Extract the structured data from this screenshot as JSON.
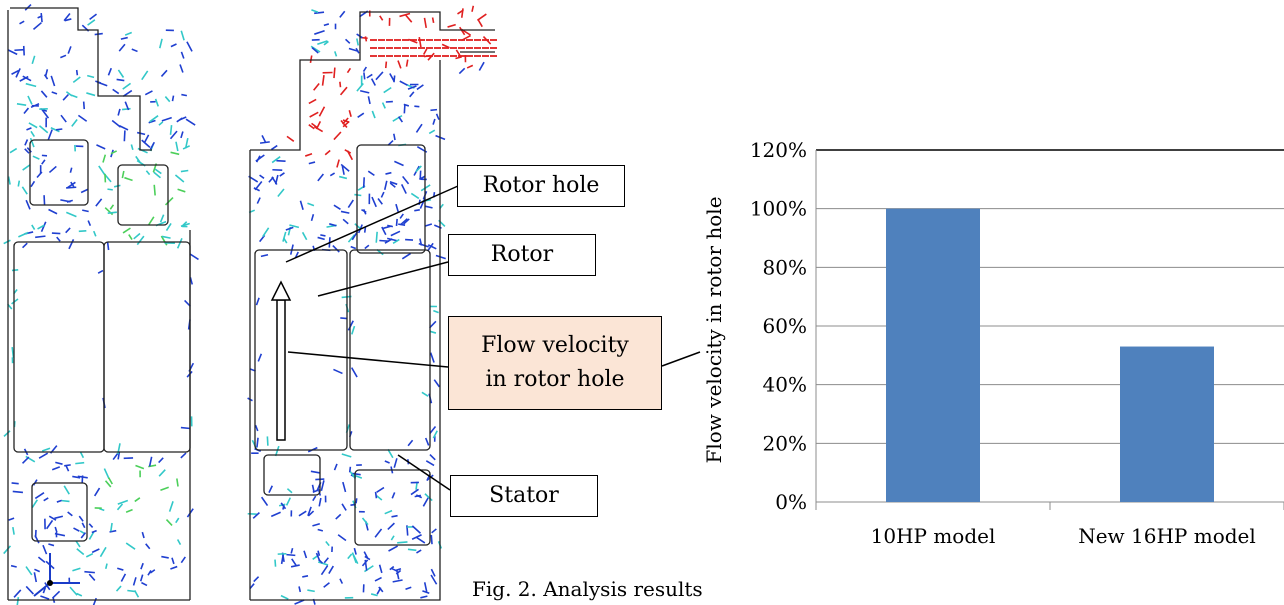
{
  "callouts": {
    "rotor_hole": "Rotor hole",
    "rotor": "Rotor",
    "flow_line1": "Flow velocity",
    "flow_line2": "in rotor hole",
    "stator": "Stator"
  },
  "caption": "Fig. 2. Analysis results",
  "colors": {
    "bar": "#4f81bd",
    "callout_fill": "#fbe5d6",
    "vectors_low": "#1f3fd0",
    "vectors_mid": "#32c8c8",
    "vectors_high": "#e02020"
  },
  "chart_data": {
    "type": "bar",
    "categories": [
      "10HP model",
      "New 16HP model"
    ],
    "values": [
      100,
      53
    ],
    "ylabel": "Flow velocity in rotor hole",
    "ylim": [
      0,
      120
    ],
    "yticks": [
      "0%",
      "20%",
      "40%",
      "60%",
      "80%",
      "100%",
      "120%"
    ],
    "grid": true
  }
}
